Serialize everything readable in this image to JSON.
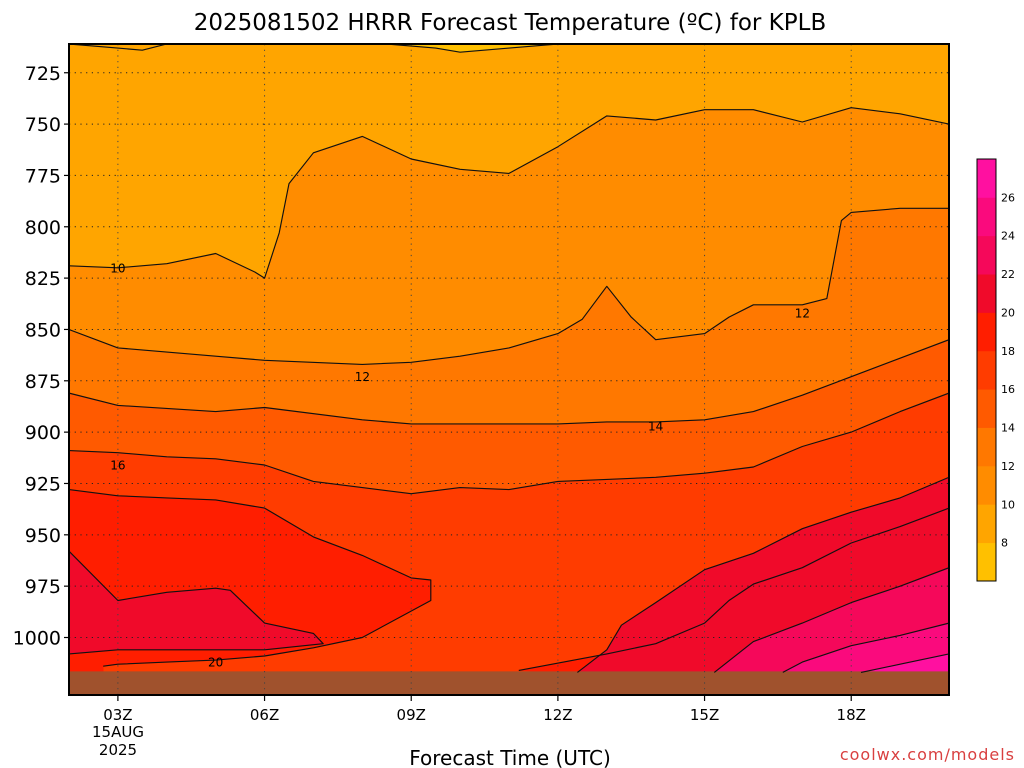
{
  "chart_data": {
    "type": "heatmap",
    "title": "2025081502 HRRR Forecast Temperature (ºC) for KPLB",
    "xlabel": "Forecast Time (UTC)",
    "ylabel": "",
    "watermark": "coolwx.com/models",
    "x_tick_labels": [
      "03Z",
      "06Z",
      "09Z",
      "12Z",
      "15Z",
      "18Z"
    ],
    "x_date_label": [
      "15AUG",
      "2025"
    ],
    "x_range_hours_utc": [
      2,
      20
    ],
    "y_tick_labels": [
      "725",
      "750",
      "775",
      "800",
      "825",
      "850",
      "875",
      "900",
      "925",
      "950",
      "975",
      "1000"
    ],
    "y_range_hPa": [
      711,
      1028
    ],
    "y_axis_inverted": true,
    "grid": true,
    "colorbar": {
      "tick_labels": [
        "8",
        "10",
        "12",
        "14",
        "16",
        "18",
        "20",
        "22",
        "24",
        "26"
      ],
      "levels": [
        6,
        8,
        10,
        12,
        14,
        16,
        18,
        20,
        22,
        24,
        26,
        28
      ],
      "colors": [
        "#FFC000",
        "#FFA500",
        "#FF8C00",
        "#FF7800",
        "#FF5A00",
        "#FF3C00",
        "#FF1E00",
        "#F00A2A",
        "#F5085A",
        "#FA0A7D",
        "#FF10A0"
      ]
    },
    "contour_labels": [
      {
        "text": "10",
        "time_utc": 3.0,
        "pressure_hPa": 820
      },
      {
        "text": "12",
        "time_utc": 17.0,
        "pressure_hPa": 842
      },
      {
        "text": "12",
        "time_utc": 8.0,
        "pressure_hPa": 873
      },
      {
        "text": "14",
        "time_utc": 14.0,
        "pressure_hPa": 897
      },
      {
        "text": "16",
        "time_utc": 3.0,
        "pressure_hPa": 916
      },
      {
        "text": "20",
        "time_utc": 5.0,
        "pressure_hPa": 1012
      }
    ],
    "temperature_bands_C": [
      {
        "min": 8,
        "max": 10,
        "color": "#FFA500"
      },
      {
        "min": 10,
        "max": 12,
        "color": "#FF8C00"
      },
      {
        "min": 12,
        "max": 14,
        "color": "#FF7800"
      },
      {
        "min": 14,
        "max": 16,
        "color": "#FF5A00"
      },
      {
        "min": 16,
        "max": 18,
        "color": "#FF3C00"
      },
      {
        "min": 18,
        "max": 20,
        "color": "#FF1E00"
      },
      {
        "min": 20,
        "max": 22,
        "color": "#F00A2A"
      },
      {
        "min": 22,
        "max": 24,
        "color": "#F5085A"
      },
      {
        "min": 24,
        "max": 26,
        "color": "#FA0A7D"
      },
      {
        "min": 26,
        "max": 28,
        "color": "#FF10A0"
      }
    ],
    "contours": {
      "c10a": {
        "level": 10,
        "points": [
          [
            2.0,
            819
          ],
          [
            3.0,
            820
          ],
          [
            4.0,
            818
          ],
          [
            5.0,
            813
          ],
          [
            5.8,
            822
          ],
          [
            6.0,
            825
          ],
          [
            6.3,
            803
          ],
          [
            6.5,
            779
          ],
          [
            7.0,
            764
          ],
          [
            8.0,
            756
          ],
          [
            9.0,
            767
          ],
          [
            10.0,
            772
          ],
          [
            11.0,
            774
          ],
          [
            12.0,
            761
          ],
          [
            13.0,
            746
          ],
          [
            14.0,
            748
          ],
          [
            15.0,
            743
          ],
          [
            16.0,
            743
          ],
          [
            17.0,
            749
          ],
          [
            18.0,
            742
          ],
          [
            19.0,
            745
          ],
          [
            20.0,
            750
          ]
        ]
      },
      "c10b": {
        "level": 10,
        "points": [
          [
            2.0,
            711
          ],
          [
            3.0,
            713
          ],
          [
            3.5,
            714
          ],
          [
            4.0,
            711
          ]
        ]
      },
      "c08": {
        "level": 8,
        "points": [
          [
            8.5,
            711
          ],
          [
            9.5,
            713
          ],
          [
            10.0,
            715
          ],
          [
            11.0,
            713
          ],
          [
            12.0,
            711
          ]
        ]
      },
      "c12": {
        "level": 12,
        "points": [
          [
            2.0,
            850
          ],
          [
            3.0,
            859
          ],
          [
            5.0,
            863
          ],
          [
            6.0,
            865
          ],
          [
            8.0,
            867
          ],
          [
            9.0,
            866
          ],
          [
            10.0,
            863
          ],
          [
            11.0,
            859
          ],
          [
            12.0,
            852
          ],
          [
            12.5,
            845
          ],
          [
            13.0,
            829
          ],
          [
            13.5,
            844
          ],
          [
            14.0,
            855
          ],
          [
            15.0,
            852
          ],
          [
            15.5,
            844
          ],
          [
            16.0,
            838
          ],
          [
            17.0,
            838
          ],
          [
            17.5,
            835
          ],
          [
            17.8,
            797
          ],
          [
            18.0,
            793
          ],
          [
            19.0,
            791
          ],
          [
            20.0,
            791
          ]
        ]
      },
      "c14": {
        "level": 14,
        "points": [
          [
            2.0,
            881
          ],
          [
            3.0,
            887
          ],
          [
            5.0,
            890
          ],
          [
            6.0,
            888
          ],
          [
            8.0,
            894
          ],
          [
            9.0,
            896
          ],
          [
            12.0,
            896
          ],
          [
            13.0,
            895
          ],
          [
            14.0,
            895
          ],
          [
            15.0,
            894
          ],
          [
            16.0,
            890
          ],
          [
            17.0,
            882
          ],
          [
            18.0,
            873
          ],
          [
            19.0,
            864
          ],
          [
            20.0,
            855
          ]
        ]
      },
      "c16": {
        "level": 16,
        "points": [
          [
            2.0,
            909
          ],
          [
            3.0,
            910
          ],
          [
            4.0,
            912
          ],
          [
            5.0,
            913
          ],
          [
            6.0,
            916
          ],
          [
            7.0,
            924
          ],
          [
            8.0,
            927
          ],
          [
            9.0,
            930
          ],
          [
            10.0,
            927
          ],
          [
            11.0,
            928
          ],
          [
            12.0,
            924
          ],
          [
            13.0,
            923
          ],
          [
            14.0,
            922
          ],
          [
            15.0,
            920
          ],
          [
            16.0,
            917
          ],
          [
            17.0,
            907
          ],
          [
            18.0,
            900
          ],
          [
            19.0,
            890
          ],
          [
            20.0,
            881
          ]
        ]
      },
      "c18": {
        "level": 18,
        "points": [
          [
            2.0,
            928
          ],
          [
            3.0,
            931
          ],
          [
            4.0,
            932
          ],
          [
            5.0,
            933
          ],
          [
            6.0,
            937
          ],
          [
            7.0,
            951
          ],
          [
            8.0,
            960
          ],
          [
            9.0,
            971
          ],
          [
            9.4,
            972
          ],
          [
            9.4,
            982
          ],
          [
            8.0,
            1000
          ],
          [
            7.0,
            1005
          ],
          [
            6.0,
            1009
          ],
          [
            5.0,
            1011
          ],
          [
            4.0,
            1012
          ],
          [
            3.0,
            1013
          ],
          [
            2.7,
            1014
          ]
        ]
      },
      "c18b": {
        "level": 18,
        "points": [
          [
            11.2,
            1016
          ],
          [
            13.0,
            1008
          ],
          [
            14.0,
            1003
          ],
          [
            15.0,
            993
          ],
          [
            15.5,
            982
          ],
          [
            16.0,
            974
          ],
          [
            17.0,
            966
          ],
          [
            18.0,
            954
          ],
          [
            19.0,
            946
          ],
          [
            20.0,
            937
          ]
        ]
      },
      "c20": {
        "level": 20,
        "points": [
          [
            2.0,
            958
          ],
          [
            3.0,
            982
          ],
          [
            4.0,
            978
          ],
          [
            5.0,
            976
          ],
          [
            5.3,
            977
          ],
          [
            6.0,
            993
          ],
          [
            7.0,
            998
          ],
          [
            7.2,
            1003
          ],
          [
            6.0,
            1006
          ],
          [
            5.0,
            1006
          ],
          [
            3.0,
            1006
          ],
          [
            2.0,
            1008
          ]
        ]
      },
      "c20b": {
        "level": 20,
        "points": [
          [
            12.4,
            1017
          ],
          [
            13.0,
            1006
          ],
          [
            13.3,
            994
          ],
          [
            14.0,
            983
          ],
          [
            15.0,
            967
          ],
          [
            16.0,
            959
          ],
          [
            17.0,
            947
          ],
          [
            18.0,
            939
          ],
          [
            19.0,
            932
          ],
          [
            20.0,
            922
          ]
        ]
      },
      "c22": {
        "level": 22,
        "points": [
          [
            15.2,
            1017
          ],
          [
            16.0,
            1002
          ],
          [
            17.0,
            993
          ],
          [
            18.0,
            983
          ],
          [
            19.0,
            975
          ],
          [
            20.0,
            966
          ]
        ]
      },
      "c24": {
        "level": 24,
        "points": [
          [
            16.6,
            1017
          ],
          [
            17.0,
            1012
          ],
          [
            18.0,
            1004
          ],
          [
            19.0,
            999
          ],
          [
            20.0,
            993
          ]
        ]
      },
      "c26": {
        "level": 26,
        "points": [
          [
            18.2,
            1017
          ],
          [
            19.0,
            1013
          ],
          [
            20.0,
            1008
          ]
        ]
      }
    },
    "ground_color": "#A0522D"
  }
}
